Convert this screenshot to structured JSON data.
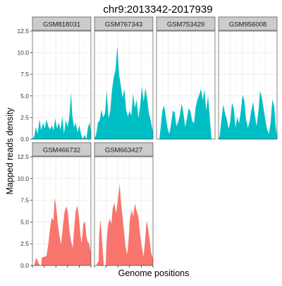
{
  "chart_data": {
    "type": "area",
    "title": "chr9:2013342-2017939",
    "xlabel": "Genome positions",
    "ylabel": "Mapped reads density",
    "ylim": [
      0,
      12.5
    ],
    "y_ticks": [
      0.0,
      2.5,
      5.0,
      7.5,
      10.0,
      12.5
    ],
    "y_tick_labels": [
      "0.0",
      "2.5",
      "5.0",
      "7.5",
      "10.0",
      "12.5"
    ],
    "x_range": [
      0,
      100
    ],
    "x_tick_labels": [],
    "grid": true,
    "facet_layout": "4 columns x 2 rows",
    "colors": {
      "group1": "#00BFC4",
      "group2": "#F8766D",
      "strip_bg": "#CCCCCC",
      "grid": "#EBEBEB",
      "panel_border": "#333333"
    },
    "panels": [
      {
        "name": "GSM818031",
        "color": "#00BFC4",
        "points": [
          [
            0,
            0
          ],
          [
            3,
            0.3
          ],
          [
            6,
            1.4
          ],
          [
            9,
            0.6
          ],
          [
            12,
            2.3
          ],
          [
            15,
            1.0
          ],
          [
            18,
            1.9
          ],
          [
            21,
            1.2
          ],
          [
            24,
            2.3
          ],
          [
            27,
            1.5
          ],
          [
            30,
            1.1
          ],
          [
            33,
            1.6
          ],
          [
            36,
            1.0
          ],
          [
            39,
            2.4
          ],
          [
            42,
            1.2
          ],
          [
            45,
            1.9
          ],
          [
            48,
            1.1
          ],
          [
            51,
            2.6
          ],
          [
            54,
            0.6
          ],
          [
            57,
            2.2
          ],
          [
            60,
            1.4
          ],
          [
            63,
            2.5
          ],
          [
            66,
            5.4
          ],
          [
            68,
            2.8
          ],
          [
            71,
            1.4
          ],
          [
            74,
            1.9
          ],
          [
            77,
            0.8
          ],
          [
            80,
            1.6
          ],
          [
            83,
            0.6
          ],
          [
            86,
            0
          ],
          [
            89,
            0.5
          ],
          [
            92,
            0
          ],
          [
            95,
            1.4
          ],
          [
            98,
            1.9
          ],
          [
            100,
            0.8
          ]
        ]
      },
      {
        "name": "GSM767343",
        "color": "#00BFC4",
        "points": [
          [
            0,
            0
          ],
          [
            3,
            0.6
          ],
          [
            6,
            1.9
          ],
          [
            9,
            2.2
          ],
          [
            12,
            3.4
          ],
          [
            15,
            2.5
          ],
          [
            18,
            3.0
          ],
          [
            21,
            5.6
          ],
          [
            24,
            2.4
          ],
          [
            27,
            3.3
          ],
          [
            30,
            5.7
          ],
          [
            33,
            7.2
          ],
          [
            36,
            8.0
          ],
          [
            39,
            10.8
          ],
          [
            42,
            7.5
          ],
          [
            45,
            6.2
          ],
          [
            48,
            4.8
          ],
          [
            51,
            5.8
          ],
          [
            54,
            3.5
          ],
          [
            57,
            2.6
          ],
          [
            60,
            3.3
          ],
          [
            63,
            2.7
          ],
          [
            66,
            5.3
          ],
          [
            69,
            3.6
          ],
          [
            72,
            4.6
          ],
          [
            75,
            2.4
          ],
          [
            78,
            3.8
          ],
          [
            81,
            6.1
          ],
          [
            84,
            4.3
          ],
          [
            87,
            5.9
          ],
          [
            90,
            4.7
          ],
          [
            93,
            3.0
          ],
          [
            96,
            2.2
          ],
          [
            98,
            1.5
          ],
          [
            100,
            0.8
          ]
        ]
      },
      {
        "name": "GSM753429",
        "color": "#00BFC4",
        "points": [
          [
            0,
            0
          ],
          [
            5,
            0
          ],
          [
            7,
            1.3
          ],
          [
            10,
            3.3
          ],
          [
            13,
            3.9
          ],
          [
            16,
            2.5
          ],
          [
            19,
            1.2
          ],
          [
            22,
            0.6
          ],
          [
            25,
            1.8
          ],
          [
            28,
            3.3
          ],
          [
            31,
            3.1
          ],
          [
            34,
            1.5
          ],
          [
            37,
            2.0
          ],
          [
            40,
            2.8
          ],
          [
            43,
            4.1
          ],
          [
            46,
            3.0
          ],
          [
            49,
            1.4
          ],
          [
            52,
            2.4
          ],
          [
            55,
            3.6
          ],
          [
            58,
            3.2
          ],
          [
            61,
            2.1
          ],
          [
            64,
            1.8
          ],
          [
            67,
            3.7
          ],
          [
            70,
            4.6
          ],
          [
            73,
            5.1
          ],
          [
            76,
            5.8
          ],
          [
            79,
            4.5
          ],
          [
            82,
            5.7
          ],
          [
            85,
            3.3
          ],
          [
            88,
            5.0
          ],
          [
            91,
            2.5
          ],
          [
            94,
            0
          ],
          [
            100,
            0
          ]
        ]
      },
      {
        "name": "GSM956008",
        "color": "#00BFC4",
        "points": [
          [
            0,
            0
          ],
          [
            2,
            0.4
          ],
          [
            5,
            2.3
          ],
          [
            8,
            4.0
          ],
          [
            11,
            3.0
          ],
          [
            14,
            2.3
          ],
          [
            17,
            1.2
          ],
          [
            20,
            2.0
          ],
          [
            23,
            4.2
          ],
          [
            26,
            3.6
          ],
          [
            29,
            1.3
          ],
          [
            32,
            2.6
          ],
          [
            35,
            1.8
          ],
          [
            38,
            3.2
          ],
          [
            41,
            5.1
          ],
          [
            44,
            4.5
          ],
          [
            47,
            2.3
          ],
          [
            50,
            1.3
          ],
          [
            53,
            2.0
          ],
          [
            56,
            3.3
          ],
          [
            59,
            4.3
          ],
          [
            62,
            2.8
          ],
          [
            65,
            1.5
          ],
          [
            68,
            3.1
          ],
          [
            71,
            5.6
          ],
          [
            74,
            4.8
          ],
          [
            77,
            3.5
          ],
          [
            80,
            2.2
          ],
          [
            83,
            1.1
          ],
          [
            86,
            0.6
          ],
          [
            89,
            1.9
          ],
          [
            92,
            4.6
          ],
          [
            95,
            3.8
          ],
          [
            98,
            1.2
          ],
          [
            100,
            0.4
          ]
        ]
      },
      {
        "name": "GSM466732",
        "color": "#F8766D",
        "points": [
          [
            0,
            0
          ],
          [
            3,
            0
          ],
          [
            5,
            0.6
          ],
          [
            7,
            0.9
          ],
          [
            9,
            0.5
          ],
          [
            11,
            0.2
          ],
          [
            13,
            0
          ],
          [
            15,
            0
          ],
          [
            16,
            0.9
          ],
          [
            20,
            1.0
          ],
          [
            24,
            1.1
          ],
          [
            27,
            2.4
          ],
          [
            30,
            4.2
          ],
          [
            33,
            5.5
          ],
          [
            36,
            5.2
          ],
          [
            38,
            7.8
          ],
          [
            41,
            6.5
          ],
          [
            43,
            5.0
          ],
          [
            46,
            3.5
          ],
          [
            49,
            2.4
          ],
          [
            52,
            4.5
          ],
          [
            55,
            6.2
          ],
          [
            58,
            6.8
          ],
          [
            61,
            6.0
          ],
          [
            63,
            4.2
          ],
          [
            66,
            2.8
          ],
          [
            69,
            2.0
          ],
          [
            71,
            4.0
          ],
          [
            74,
            6.3
          ],
          [
            77,
            6.9
          ],
          [
            80,
            5.2
          ],
          [
            82,
            3.6
          ],
          [
            84,
            2.5
          ],
          [
            87,
            4.8
          ],
          [
            90,
            5.0
          ],
          [
            92,
            3.5
          ],
          [
            94,
            2.8
          ],
          [
            97,
            2.5
          ],
          [
            100,
            1.4
          ]
        ]
      },
      {
        "name": "GSM663427",
        "color": "#F8766D",
        "points": [
          [
            0,
            0
          ],
          [
            3,
            0
          ],
          [
            5,
            0.3
          ],
          [
            7,
            0.5
          ],
          [
            8,
            3.5
          ],
          [
            10,
            5.3
          ],
          [
            12,
            3.8
          ],
          [
            14,
            1.9
          ],
          [
            16,
            0
          ],
          [
            19,
            0
          ],
          [
            21,
            3.0
          ],
          [
            23,
            4.6
          ],
          [
            26,
            5.4
          ],
          [
            29,
            4.8
          ],
          [
            31,
            6.5
          ],
          [
            34,
            7.2
          ],
          [
            37,
            6.0
          ],
          [
            40,
            7.6
          ],
          [
            43,
            9.4
          ],
          [
            45,
            7.5
          ],
          [
            48,
            5.6
          ],
          [
            51,
            3.6
          ],
          [
            53,
            2.2
          ],
          [
            56,
            1.3
          ],
          [
            58,
            2.8
          ],
          [
            61,
            5.6
          ],
          [
            64,
            6.4
          ],
          [
            66,
            5.6
          ],
          [
            69,
            7.1
          ],
          [
            72,
            6.3
          ],
          [
            75,
            5.6
          ],
          [
            78,
            3.6
          ],
          [
            81,
            2.1
          ],
          [
            84,
            1.0
          ],
          [
            86,
            2.5
          ],
          [
            89,
            5.1
          ],
          [
            91,
            4.6
          ],
          [
            94,
            3.1
          ],
          [
            97,
            1.4
          ],
          [
            100,
            0.8
          ]
        ]
      }
    ]
  }
}
